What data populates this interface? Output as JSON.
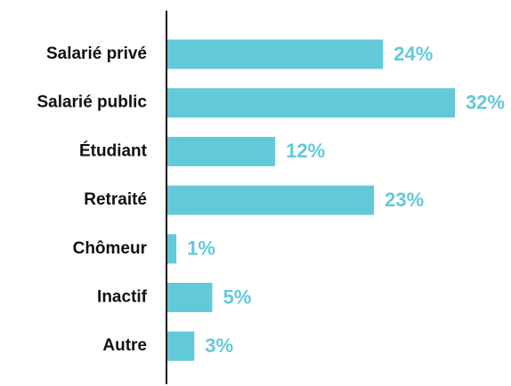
{
  "chart_data": {
    "type": "bar",
    "orientation": "horizontal",
    "categories": [
      "Salarié privé",
      "Salarié public",
      "Étudiant",
      "Retraité",
      "Chômeur",
      "Inactif",
      "Autre"
    ],
    "values": [
      24,
      32,
      12,
      23,
      1,
      5,
      3
    ],
    "value_labels": [
      "24%",
      "32%",
      "12%",
      "23%",
      "1%",
      "5%",
      "3%"
    ],
    "color": "#62c9d9"
  }
}
